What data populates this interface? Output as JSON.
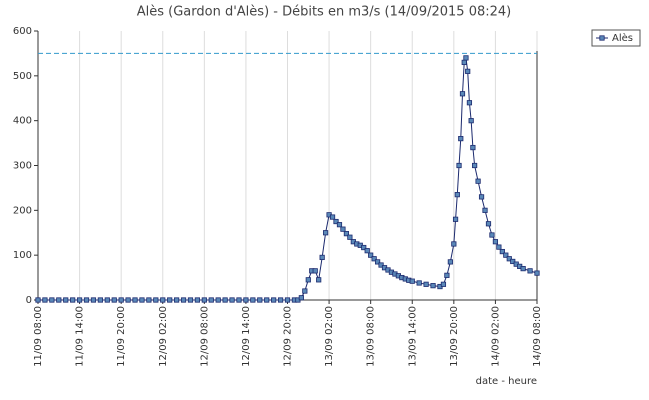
{
  "chart_data": {
    "type": "line",
    "title": "Alès (Gardon d'Alès) - Débits en m3/s (14/09/2015 08:24)",
    "x_label": "date - heure",
    "x": [
      "11/09 08:00",
      "11/09 09:00",
      "11/09 10:00",
      "11/09 11:00",
      "11/09 12:00",
      "11/09 13:00",
      "11/09 14:00",
      "11/09 15:00",
      "11/09 16:00",
      "11/09 17:00",
      "11/09 18:00",
      "11/09 19:00",
      "11/09 20:00",
      "11/09 21:00",
      "11/09 22:00",
      "11/09 23:00",
      "12/09 00:00",
      "12/09 01:00",
      "12/09 02:00",
      "12/09 03:00",
      "12/09 04:00",
      "12/09 05:00",
      "12/09 06:00",
      "12/09 07:00",
      "12/09 08:00",
      "12/09 09:00",
      "12/09 10:00",
      "12/09 11:00",
      "12/09 12:00",
      "12/09 13:00",
      "12/09 14:00",
      "12/09 15:00",
      "12/09 16:00",
      "12/09 17:00",
      "12/09 18:00",
      "12/09 19:00",
      "12/09 20:00",
      "12/09 21:00",
      "12/09 21:30",
      "12/09 22:00",
      "12/09 22:30",
      "12/09 23:00",
      "12/09 23:30",
      "13/09 00:00",
      "13/09 00:30",
      "13/09 01:00",
      "13/09 01:30",
      "13/09 02:00",
      "13/09 02:30",
      "13/09 03:00",
      "13/09 03:30",
      "13/09 04:00",
      "13/09 04:30",
      "13/09 05:00",
      "13/09 05:30",
      "13/09 06:00",
      "13/09 06:30",
      "13/09 07:00",
      "13/09 07:30",
      "13/09 08:00",
      "13/09 08:30",
      "13/09 09:00",
      "13/09 09:30",
      "13/09 10:00",
      "13/09 10:30",
      "13/09 11:00",
      "13/09 11:30",
      "13/09 12:00",
      "13/09 12:30",
      "13/09 13:00",
      "13/09 13:30",
      "13/09 14:00",
      "13/09 15:00",
      "13/09 16:00",
      "13/09 17:00",
      "13/09 18:00",
      "13/09 18:30",
      "13/09 19:00",
      "13/09 19:30",
      "13/09 20:00",
      "13/09 20:15",
      "13/09 20:30",
      "13/09 20:45",
      "13/09 21:00",
      "13/09 21:15",
      "13/09 21:30",
      "13/09 21:45",
      "13/09 22:00",
      "13/09 22:15",
      "13/09 22:30",
      "13/09 22:45",
      "13/09 23:00",
      "13/09 23:30",
      "14/09 00:00",
      "14/09 00:30",
      "14/09 01:00",
      "14/09 01:30",
      "14/09 02:00",
      "14/09 02:30",
      "14/09 03:00",
      "14/09 03:30",
      "14/09 04:00",
      "14/09 04:30",
      "14/09 05:00",
      "14/09 05:30",
      "14/09 06:00",
      "14/09 07:00",
      "14/09 08:00"
    ],
    "series": [
      {
        "name": "Alès",
        "color": "#1c2a6e",
        "marker_color": "#5a88b8",
        "values": [
          0,
          0,
          0,
          0,
          0,
          0,
          0,
          0,
          0,
          0,
          0,
          0,
          0,
          0,
          0,
          0,
          0,
          0,
          0,
          0,
          0,
          0,
          0,
          0,
          0,
          0,
          0,
          0,
          0,
          0,
          0,
          0,
          0,
          0,
          0,
          0,
          0,
          0,
          0,
          5,
          20,
          45,
          65,
          65,
          45,
          95,
          150,
          190,
          185,
          175,
          168,
          158,
          148,
          140,
          130,
          125,
          122,
          117,
          110,
          100,
          92,
          85,
          78,
          72,
          67,
          62,
          58,
          54,
          50,
          47,
          44,
          42,
          38,
          35,
          32,
          30,
          35,
          55,
          85,
          125,
          180,
          235,
          300,
          360,
          460,
          530,
          540,
          510,
          440,
          400,
          340,
          300,
          265,
          230,
          200,
          170,
          145,
          130,
          118,
          108,
          100,
          92,
          86,
          80,
          75,
          70,
          65,
          60
        ]
      }
    ],
    "reference_line": {
      "value": 550,
      "color": "#3399cc"
    },
    "xlim": [
      "11/09 08:00",
      "14/09 08:00"
    ],
    "xticks": [
      "11/09 08:00",
      "11/09 14:00",
      "11/09 20:00",
      "12/09 02:00",
      "12/09 08:00",
      "12/09 14:00",
      "12/09 20:00",
      "13/09 02:00",
      "13/09 08:00",
      "13/09 14:00",
      "13/09 20:00",
      "14/09 02:00",
      "14/09 08:00"
    ],
    "ylim": [
      0,
      600
    ],
    "yticks": [
      0,
      100,
      200,
      300,
      400,
      500,
      600
    ],
    "grid": true,
    "legend": "top-right"
  }
}
